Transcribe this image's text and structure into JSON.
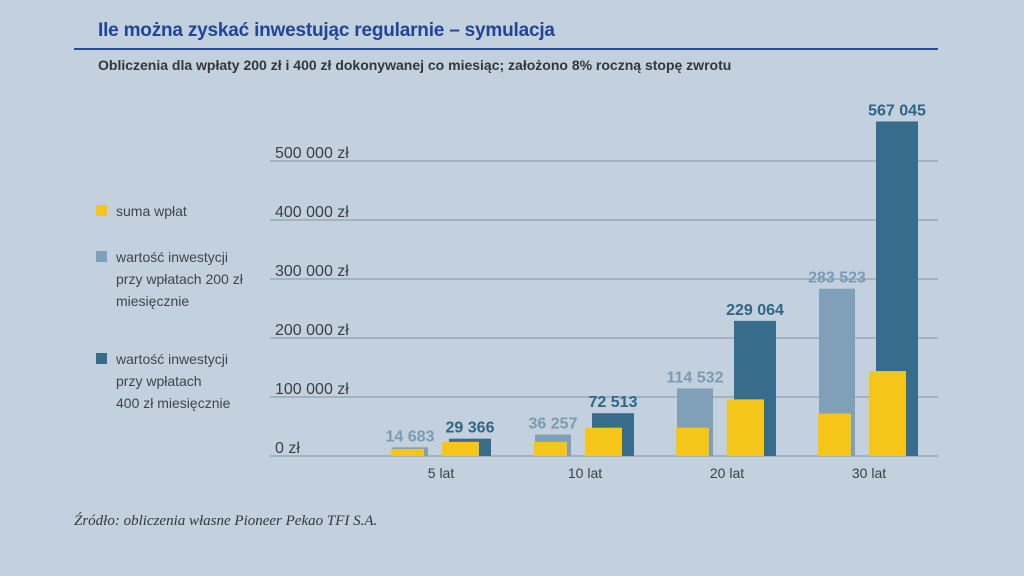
{
  "header": {
    "title": "Ile można zyskać inwestując regularnie – symulacja",
    "subtitle": "Obliczenia dla wpłaty 200 zł i 400 zł dokonywanej co miesiąc; założono 8% roczną stopę zwrotu"
  },
  "legend": {
    "items": [
      {
        "lines": [
          "suma wpłat"
        ],
        "color": "#f6c519"
      },
      {
        "lines": [
          "wartość inwestycji",
          "przy wpłatach 200 zł",
          "miesięcznie"
        ],
        "color": "#809fb9"
      },
      {
        "lines": [
          "wartość inwestycji",
          "przy wpłatach",
          "400 zł miesięcznie"
        ],
        "color": "#386c8c"
      }
    ]
  },
  "source": "Źródło: obliczenia własne Pioneer Pekao TFI S.A.",
  "chart_data": {
    "type": "bar",
    "categories": [
      "5 lat",
      "10 lat",
      "20 lat",
      "30 lat"
    ],
    "ylim": [
      0,
      500000
    ],
    "yticks": [
      {
        "value": 0,
        "label": "0 zł"
      },
      {
        "value": 100000,
        "label": "100 000 zł"
      },
      {
        "value": 200000,
        "label": "200 000 zł"
      },
      {
        "value": 300000,
        "label": "300 000 zł"
      },
      {
        "value": 400000,
        "label": "400 000 zł"
      },
      {
        "value": 500000,
        "label": "500 000 zł"
      }
    ],
    "grid": true,
    "groups": [
      {
        "contributions": 12000,
        "value": 14683,
        "value_label": "14 683",
        "color": "#809fb9",
        "label_color": "#7a9ab5"
      },
      {
        "contributions": 24000,
        "value": 29366,
        "value_label": "29 366",
        "color": "#386c8c",
        "label_color": "#2f6585"
      },
      {
        "contributions": 24000,
        "value": 36257,
        "value_label": "36 257",
        "color": "#809fb9",
        "label_color": "#7a9ab5"
      },
      {
        "contributions": 48000,
        "value": 72513,
        "value_label": "72 513",
        "color": "#386c8c",
        "label_color": "#2f6585"
      },
      {
        "contributions": 48000,
        "value": 114532,
        "value_label": "114 532",
        "color": "#809fb9",
        "label_color": "#7a9ab5"
      },
      {
        "contributions": 96000,
        "value": 229064,
        "value_label": "229 064",
        "color": "#386c8c",
        "label_color": "#2f6585"
      },
      {
        "contributions": 72000,
        "value": 283523,
        "value_label": "283 523",
        "color": "#809fb9",
        "label_color": "#7a9ab5"
      },
      {
        "contributions": 144000,
        "value": 567045,
        "value_label": "567 045",
        "color": "#386c8c",
        "label_color": "#2f6585"
      }
    ],
    "contribution_color": "#f6c519"
  }
}
